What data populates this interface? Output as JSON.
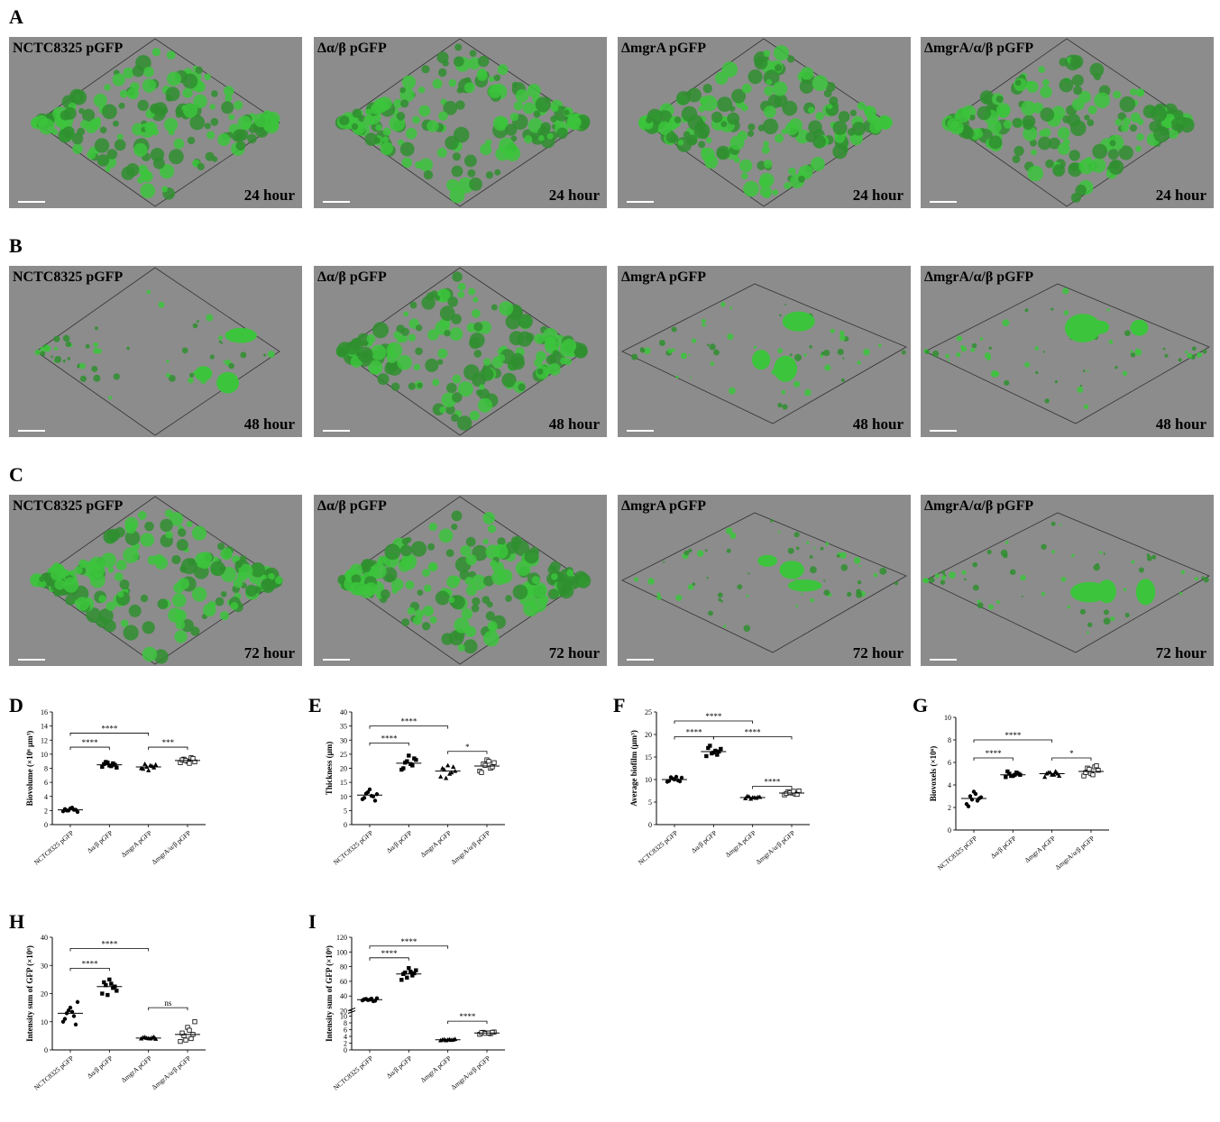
{
  "rows": [
    {
      "label": "A",
      "time": "24 hour"
    },
    {
      "label": "B",
      "time": "48 hour"
    },
    {
      "label": "C",
      "time": "72 hour"
    }
  ],
  "strains": [
    "NCTC8325 pGFP",
    "Δα/β pGFP",
    "ΔmgrA pGFP",
    "ΔmgrA/α/β pGFP"
  ],
  "colors": {
    "panel_bg": "#8c8c8c",
    "biofilm": "#2f8f2f",
    "biofilm_light": "#3cc43c"
  },
  "chart_data": [
    {
      "panel": "D",
      "type": "scatter",
      "ylabel": "Biovolume (×10⁶ μm³)",
      "ylim": [
        0,
        16
      ],
      "yticks": [
        0,
        2,
        4,
        6,
        8,
        10,
        12,
        14,
        16
      ],
      "categories": [
        "NCTC8325 pGFP",
        "Δα/β pGFP",
        "ΔmgrA pGFP",
        "ΔmgrA/α/β pGFP"
      ],
      "means": [
        2.1,
        8.5,
        8.2,
        9.1
      ],
      "points": [
        [
          1.9,
          2.0,
          2.3,
          2.1,
          1.8,
          2.2,
          2.0,
          2.4,
          2.1
        ],
        [
          8.2,
          8.9,
          8.4,
          8.7,
          8.1,
          8.6,
          8.8,
          8.3,
          8.5
        ],
        [
          8.0,
          8.6,
          7.7,
          8.3,
          8.5,
          7.9,
          8.2,
          8.4,
          8.1
        ],
        [
          8.8,
          9.3,
          9.0,
          9.5,
          8.9,
          9.2,
          9.1,
          8.7,
          9.4
        ]
      ],
      "markers": [
        "circle",
        "square",
        "triangle",
        "open-square"
      ],
      "comparisons": [
        {
          "from": 0,
          "to": 1,
          "level": 11.0,
          "label": "****"
        },
        {
          "from": 0,
          "to": 2,
          "level": 13.0,
          "label": "****"
        },
        {
          "from": 2,
          "to": 3,
          "level": 11.0,
          "label": "***"
        }
      ]
    },
    {
      "panel": "E",
      "type": "scatter",
      "ylabel": "Thickness (μm)",
      "ylim": [
        0,
        40
      ],
      "yticks": [
        0,
        5,
        10,
        15,
        20,
        25,
        30,
        35,
        40
      ],
      "categories": [
        "NCTC8325 pGFP",
        "Δα/β pGFP",
        "ΔmgrA pGFP",
        "ΔmgrA/α/β pGFP"
      ],
      "means": [
        10.5,
        21.8,
        19.0,
        20.8
      ],
      "points": [
        [
          9.0,
          11.0,
          12.5,
          10.0,
          10.8,
          9.5,
          11.5,
          10.2,
          8.5
        ],
        [
          19.5,
          22.0,
          24.5,
          21.0,
          23.0,
          20.0,
          22.5,
          21.5,
          23.5
        ],
        [
          17.0,
          19.5,
          21.0,
          18.5,
          19.0,
          20.0,
          16.5,
          18.0,
          20.5
        ],
        [
          19.0,
          21.5,
          23.0,
          20.0,
          22.0,
          18.5,
          21.0,
          22.5,
          20.5
        ]
      ],
      "markers": [
        "circle",
        "square",
        "triangle",
        "open-square"
      ],
      "comparisons": [
        {
          "from": 0,
          "to": 1,
          "level": 29.0,
          "label": "****"
        },
        {
          "from": 0,
          "to": 2,
          "level": 35.0,
          "label": "****"
        },
        {
          "from": 2,
          "to": 3,
          "level": 26.0,
          "label": "*"
        }
      ]
    },
    {
      "panel": "F",
      "type": "scatter",
      "ylabel": "Average biofilm (μm³)",
      "ylim": [
        0,
        25
      ],
      "yticks": [
        0,
        5,
        10,
        15,
        20,
        25
      ],
      "categories": [
        "NCTC8325 pGFP",
        "Δα/β pGFP",
        "ΔmgrA pGFP",
        "ΔmgrA/α/β pGFP"
      ],
      "means": [
        10.0,
        16.2,
        6.0,
        7.0
      ],
      "points": [
        [
          9.5,
          10.5,
          10.0,
          9.8,
          10.4,
          9.7,
          10.2,
          10.6,
          9.6
        ],
        [
          15.2,
          17.5,
          16.0,
          15.5,
          16.8,
          17.0,
          15.8,
          16.4,
          16.2
        ],
        [
          5.8,
          6.2,
          6.0,
          5.9,
          6.1,
          6.3,
          5.7,
          6.0,
          6.1
        ],
        [
          6.6,
          7.3,
          7.0,
          6.8,
          7.5,
          6.9,
          7.1,
          7.4,
          6.7
        ]
      ],
      "markers": [
        "circle",
        "square",
        "triangle",
        "open-square"
      ],
      "comparisons": [
        {
          "from": 0,
          "to": 1,
          "level": 19.5,
          "label": "****"
        },
        {
          "from": 0,
          "to": 2,
          "level": 23.0,
          "label": "****"
        },
        {
          "from": 1,
          "to": 3,
          "level": 19.5,
          "label": "****"
        },
        {
          "from": 2,
          "to": 3,
          "level": 8.5,
          "label": "****"
        }
      ]
    },
    {
      "panel": "G",
      "type": "scatter",
      "ylabel": "Biovoxels (×10⁶)",
      "ylim": [
        0,
        10
      ],
      "yticks": [
        0,
        2,
        4,
        6,
        8,
        10
      ],
      "categories": [
        "NCTC8325 pGFP",
        "Δα/β pGFP",
        "ΔmgrA pGFP",
        "ΔmgrA/α/β pGFP"
      ],
      "means": [
        2.8,
        4.9,
        5.0,
        5.2
      ],
      "points": [
        [
          2.3,
          3.0,
          3.4,
          2.6,
          2.9,
          2.1,
          2.7,
          3.2,
          2.8
        ],
        [
          4.7,
          5.0,
          4.8,
          5.1,
          4.9,
          5.2,
          4.8,
          4.9,
          5.0
        ],
        [
          4.7,
          5.1,
          4.9,
          5.2,
          4.8,
          5.0,
          5.1,
          4.9,
          5.0
        ],
        [
          4.8,
          5.5,
          5.0,
          5.6,
          5.3,
          5.1,
          5.4,
          4.9,
          5.7
        ]
      ],
      "markers": [
        "circle",
        "square",
        "triangle",
        "open-square"
      ],
      "comparisons": [
        {
          "from": 0,
          "to": 1,
          "level": 6.4,
          "label": "****"
        },
        {
          "from": 0,
          "to": 2,
          "level": 8.0,
          "label": "****"
        },
        {
          "from": 2,
          "to": 3,
          "level": 6.4,
          "label": "*"
        }
      ]
    },
    {
      "panel": "H",
      "type": "scatter",
      "ylabel": "Intensity sum of GFP (×10⁶)",
      "ylim": [
        0,
        40
      ],
      "yticks": [
        0,
        10,
        20,
        30,
        40
      ],
      "categories": [
        "NCTC8325 pGFP",
        "Δα/β pGFP",
        "ΔmgrA pGFP",
        "ΔmgrA/α/β pGFP"
      ],
      "means": [
        13.0,
        22.5,
        4.2,
        5.5
      ],
      "points": [
        [
          10.0,
          13.0,
          15.0,
          12.0,
          17.0,
          11.0,
          14.0,
          13.5,
          9.0
        ],
        [
          20.0,
          23.0,
          25.0,
          22.0,
          21.0,
          24.0,
          19.5,
          23.5,
          22.5
        ],
        [
          4.0,
          4.5,
          4.1,
          4.3,
          3.9,
          4.4,
          4.2,
          4.0,
          4.6
        ],
        [
          3.0,
          5.0,
          8.0,
          4.0,
          10.0,
          6.0,
          3.5,
          7.0,
          5.5
        ]
      ],
      "markers": [
        "circle",
        "square",
        "triangle",
        "open-square"
      ],
      "comparisons": [
        {
          "from": 0,
          "to": 1,
          "level": 29.0,
          "label": "****"
        },
        {
          "from": 0,
          "to": 2,
          "level": 36.0,
          "label": "****"
        },
        {
          "from": 2,
          "to": 3,
          "level": 15.0,
          "label": "ns"
        }
      ]
    },
    {
      "panel": "I",
      "type": "scatter",
      "ylabel": "Intensity sum of GFP (×10⁶)",
      "ylim": [
        0,
        120
      ],
      "yticks": [
        0,
        2,
        4,
        6,
        8,
        10,
        20,
        40,
        60,
        80,
        100,
        120
      ],
      "axis_break": [
        10,
        20
      ],
      "categories": [
        "NCTC8325 pGFP",
        "Δα/β pGFP",
        "ΔmgrA pGFP",
        "ΔmgrA/α/β pGFP"
      ],
      "means": [
        35.0,
        70.0,
        3.0,
        5.0
      ],
      "points": [
        [
          34.0,
          36.0,
          35.0,
          33.0,
          37.0,
          35.5,
          34.5,
          36.5,
          33.5
        ],
        [
          62.0,
          72.0,
          78.0,
          68.0,
          75.0,
          70.0,
          65.0,
          73.0,
          71.0
        ],
        [
          2.8,
          3.1,
          3.0,
          2.9,
          3.2,
          3.0,
          2.8,
          3.1,
          3.0
        ],
        [
          4.6,
          5.2,
          5.0,
          4.8,
          5.3,
          5.1,
          4.9,
          5.0,
          5.2
        ]
      ],
      "markers": [
        "circle",
        "square",
        "triangle",
        "open-square"
      ],
      "comparisons": [
        {
          "from": 0,
          "to": 1,
          "level": 92.0,
          "label": "****"
        },
        {
          "from": 0,
          "to": 2,
          "level": 108.0,
          "label": "****"
        },
        {
          "from": 2,
          "to": 3,
          "level": 8.5,
          "label": "****"
        }
      ]
    }
  ]
}
